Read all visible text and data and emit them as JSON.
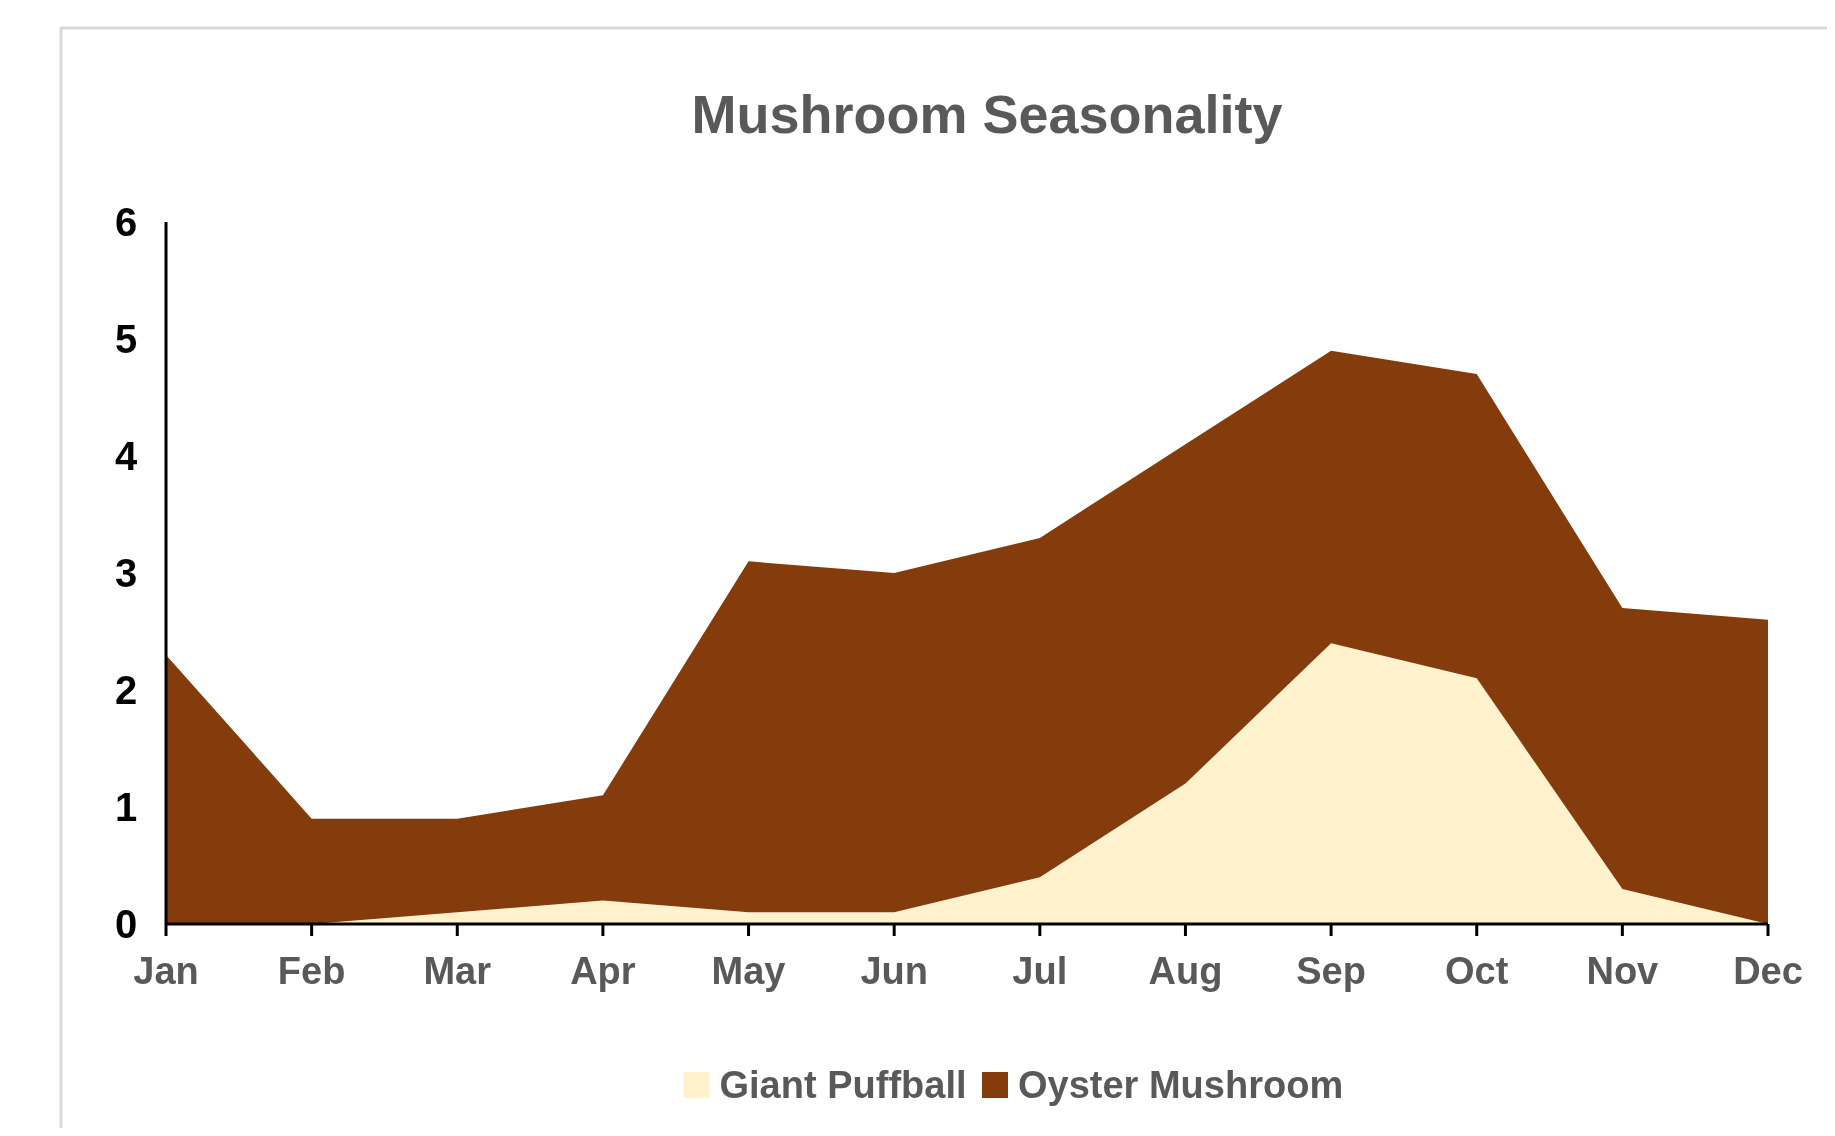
{
  "chart_data": {
    "type": "area",
    "title": "Mushroom Seasonality",
    "stacked": true,
    "categories": [
      "Jan",
      "Feb",
      "Mar",
      "Apr",
      "May",
      "Jun",
      "Jul",
      "Aug",
      "Sep",
      "Oct",
      "Nov",
      "Dec"
    ],
    "series": [
      {
        "name": "Giant  Puffball",
        "color": "#fff2cc",
        "values": [
          0,
          0,
          0.1,
          0.2,
          0.1,
          0.1,
          0.4,
          1.2,
          2.4,
          2.1,
          0.3,
          0
        ]
      },
      {
        "name": "Oyster Mushroom",
        "color": "#843c0c",
        "values": [
          2.3,
          0.9,
          0.8,
          0.9,
          3.0,
          2.9,
          2.9,
          2.9,
          2.5,
          2.6,
          2.4,
          2.6
        ]
      }
    ],
    "ylim": [
      0,
      6
    ],
    "yticks": [
      0,
      1,
      2,
      3,
      4,
      5,
      6
    ],
    "grid": false,
    "legend": "bottom"
  }
}
